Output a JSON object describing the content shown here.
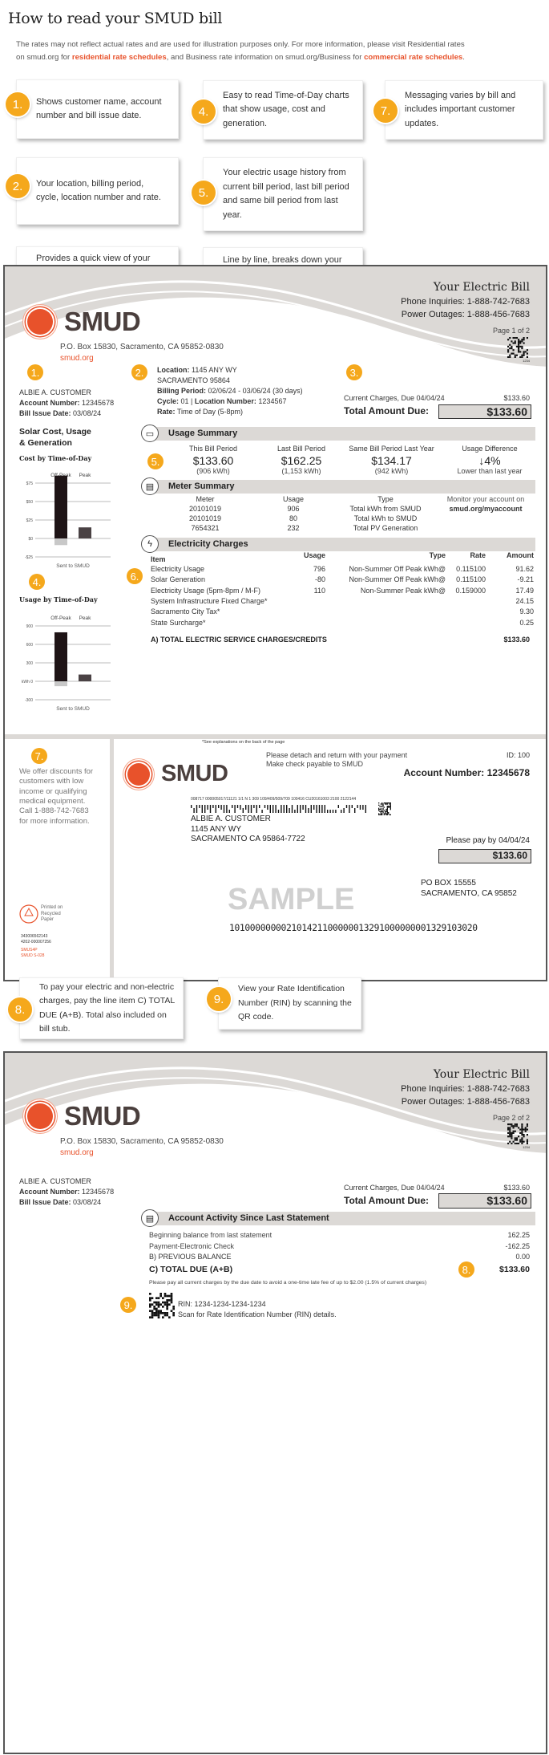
{
  "header": {
    "title": "How to read your SMUD bill",
    "intro_1": "The rates may not reflect actual rates and are used for illustration purposes only. For more information, please visit Residential rates",
    "intro_2a": "on smud.org for ",
    "intro_link1": "residential rate schedules",
    "intro_2b": ", and Business rate information on smud.org/Business for ",
    "intro_link2": "commercial rate schedules",
    "intro_2c": "."
  },
  "callouts": [
    {
      "n": "1.",
      "text": "Shows customer name, account number and bill issue date."
    },
    {
      "n": "2.",
      "text": "Your location, billing period, cycle, location number and rate."
    },
    {
      "n": "3.",
      "text": "Provides a quick view of your total amount due and the bill's due dates. Additional billing details available on stub."
    },
    {
      "n": "4.",
      "text": "Easy to read Time-of-Day charts that show usage, cost and generation."
    },
    {
      "n": "5.",
      "text": "Your electric usage history from current bill period, last bill period and same bill period from last year."
    },
    {
      "n": "6.",
      "text": "Line by line, breaks down your electric usage by peak time, rate, solar generation and total amount. The hours that you use electricity determine its cost."
    },
    {
      "n": "7.",
      "text": "Messaging varies by bill and includes important customer updates."
    },
    {
      "n": "8.",
      "text": "To pay your electric and non-electric charges, pay the line item C) TOTAL DUE (A+B). Total also included on bill stub."
    },
    {
      "n": "9.",
      "text": "View your Rate Identification Number (RIN) by scanning the QR code."
    }
  ],
  "colors": {
    "accent": "#f5a81c",
    "brand": "#e8522b",
    "band": "#dcd9d6"
  },
  "bill_common": {
    "title": "Your Electric Bill",
    "phone": "Phone Inquiries: 1-888-742-7683",
    "outages": "Power Outages: 1-888-456-7683",
    "logo": "SMUD",
    "address": "P.O. Box 15830, Sacramento, CA 95852-0830",
    "website": "smud.org",
    "qr_code_num": "1234",
    "customer": "ALBIE A. CUSTOMER",
    "account_label": "Account Number:",
    "account": "12345678",
    "issue_label": "Bill Issue Date:",
    "issue": "03/08/24",
    "current_charges": "Current Charges, Due 04/04/24",
    "current_amount": "$133.60",
    "total_label": "Total Amount Due:",
    "total_amount": "$133.60"
  },
  "page1": {
    "page": "Page 1 of 2",
    "location_label": "Location:",
    "location": "1145 ANY WY",
    "city": "SACRAMENTO 95864",
    "period_label": "Billing Period:",
    "period": "02/06/24 - 03/06/24 (30 days)",
    "cycle_label": "Cycle:",
    "cycle": "01 | ",
    "locnum_label": "Location Number:",
    "locnum": "1234567",
    "rate_label": "Rate:",
    "rate": "Time of Day (5-8pm)",
    "usage_summary": {
      "title": "Usage Summary",
      "cols": [
        {
          "label": "This Bill Period",
          "value": "$133.60",
          "sub": "(906 kWh)"
        },
        {
          "label": "Last Bill Period",
          "value": "$162.25",
          "sub": "(1,153 kWh)"
        },
        {
          "label": "Same Bill Period Last Year",
          "value": "$134.17",
          "sub": "(942 kWh)"
        },
        {
          "label": "Usage Difference",
          "value": "↓4%",
          "sub": "Lower than last year"
        }
      ]
    },
    "meter_summary": {
      "title": "Meter Summary",
      "headers": [
        "Meter",
        "Usage",
        "Type"
      ],
      "rows": [
        [
          "20101019",
          "906",
          "Total kWh from SMUD"
        ],
        [
          "20101019",
          "80",
          "Total kWh to SMUD"
        ],
        [
          "7654321",
          "232",
          "Total PV Generation"
        ]
      ],
      "monitor_1": "Monitor your account on",
      "monitor_2": "smud.org/myaccount"
    },
    "charges": {
      "title": "Electricity Charges",
      "headers": [
        "Item",
        "Usage",
        "Type",
        "Rate",
        "Amount"
      ],
      "rows": [
        [
          "Electricity Usage",
          "796",
          "Non-Summer Off Peak kWh@",
          "0.115100",
          "91.62"
        ],
        [
          "Solar Generation",
          "-80",
          "Non-Summer Off Peak kWh@",
          "0.115100",
          "-9.21"
        ],
        [
          "Electricity Usage (5pm-8pm / M-F)",
          "110",
          "Non-Summer Peak kWh@",
          "0.159000",
          "17.49"
        ],
        [
          "System Infrastructure Fixed Charge*",
          "",
          "",
          "",
          "24.15"
        ],
        [
          "Sacramento City Tax*",
          "",
          "",
          "",
          "9.30"
        ],
        [
          "State Surcharge*",
          "",
          "",
          "",
          "0.25"
        ]
      ],
      "total_label": "A) TOTAL ELECTRIC SERVICE CHARGES/CREDITS",
      "total": "$133.60"
    },
    "side_title_1": "Solar Cost, Usage",
    "side_title_2": "& Generation"
  },
  "chart_data": [
    {
      "type": "bar",
      "title": "Cost by Time-of-Day",
      "categories": [
        "Off-Peak",
        "Peak"
      ],
      "values": [
        85,
        15
      ],
      "sent_label": "Sent to SMUD",
      "sent_value": -9,
      "ylim": [
        -25,
        75
      ],
      "yticks": [
        75,
        50,
        25,
        0,
        -25
      ],
      "ytick_labels": [
        "$75",
        "$50",
        "$25",
        "$0",
        "-$25"
      ],
      "grid": true
    },
    {
      "type": "bar",
      "title": "Usage by Time-of-Day",
      "categories": [
        "Off-Peak",
        "Peak"
      ],
      "values": [
        796,
        110
      ],
      "sent_label": "Sent to SMUD",
      "sent_value": -80,
      "ylim": [
        -300,
        900
      ],
      "yticks": [
        900,
        600,
        300,
        0,
        -300
      ],
      "ytick_labels": [
        "900",
        "600",
        "300",
        "kWh 0",
        "-300"
      ],
      "grid": true
    }
  ],
  "stub": {
    "note": "*See explanations on the back of the page",
    "detach_1": "Please detach and return with your payment",
    "detach_2": "Make check payable to SMUD",
    "id": "ID: 100",
    "account": "Account Number: 12345678",
    "scan_line": "008717 000005017/11121 1/1 N 1 309 109/409/509/709 100416 CU20161003 2100 2122144",
    "addr": [
      "ALBIE A. CUSTOMER",
      "1145 ANY WY",
      "SACRAMENTO CA 95864-7722"
    ],
    "pay_by": "Please pay by 04/04/24",
    "pay_amount": "$133.60",
    "remit": [
      "PO BOX 15555",
      "SACRAMENTO, CA 95852"
    ],
    "watermark": "SAMPLE",
    "ocr": "101000000002101421100000013291000000001329103020",
    "message": [
      "We offer discounts for",
      "customers with low",
      "income or qualifying",
      "medical equipment.",
      "Call 1-888-742-7683",
      "for more information."
    ],
    "recycled": [
      "Printed on",
      "Recycled",
      "Paper"
    ],
    "codes": [
      "343006562143",
      "4202-000007256"
    ],
    "codes_red": [
      "SMUS4P",
      "SMUD S-028"
    ]
  },
  "page2": {
    "page": "Page 2 of 2",
    "activity": {
      "title": "Account Activity Since Last Statement",
      "rows": [
        [
          "Beginning balance from last statement",
          "162.25"
        ],
        [
          "Payment-Electronic Check",
          "-162.25"
        ],
        [
          "B) PREVIOUS BALANCE",
          "0.00"
        ]
      ],
      "total_label": "C) TOTAL DUE (A+B)",
      "total": "$133.60",
      "note": "Please pay all current charges by the due date to avoid a one-time late fee of up to $2.00 (1.5% of current charges)"
    },
    "rin": "RIN: 1234-1234-1234-1234",
    "rin_note": "Scan for Rate Identification Number (RIN) details."
  }
}
